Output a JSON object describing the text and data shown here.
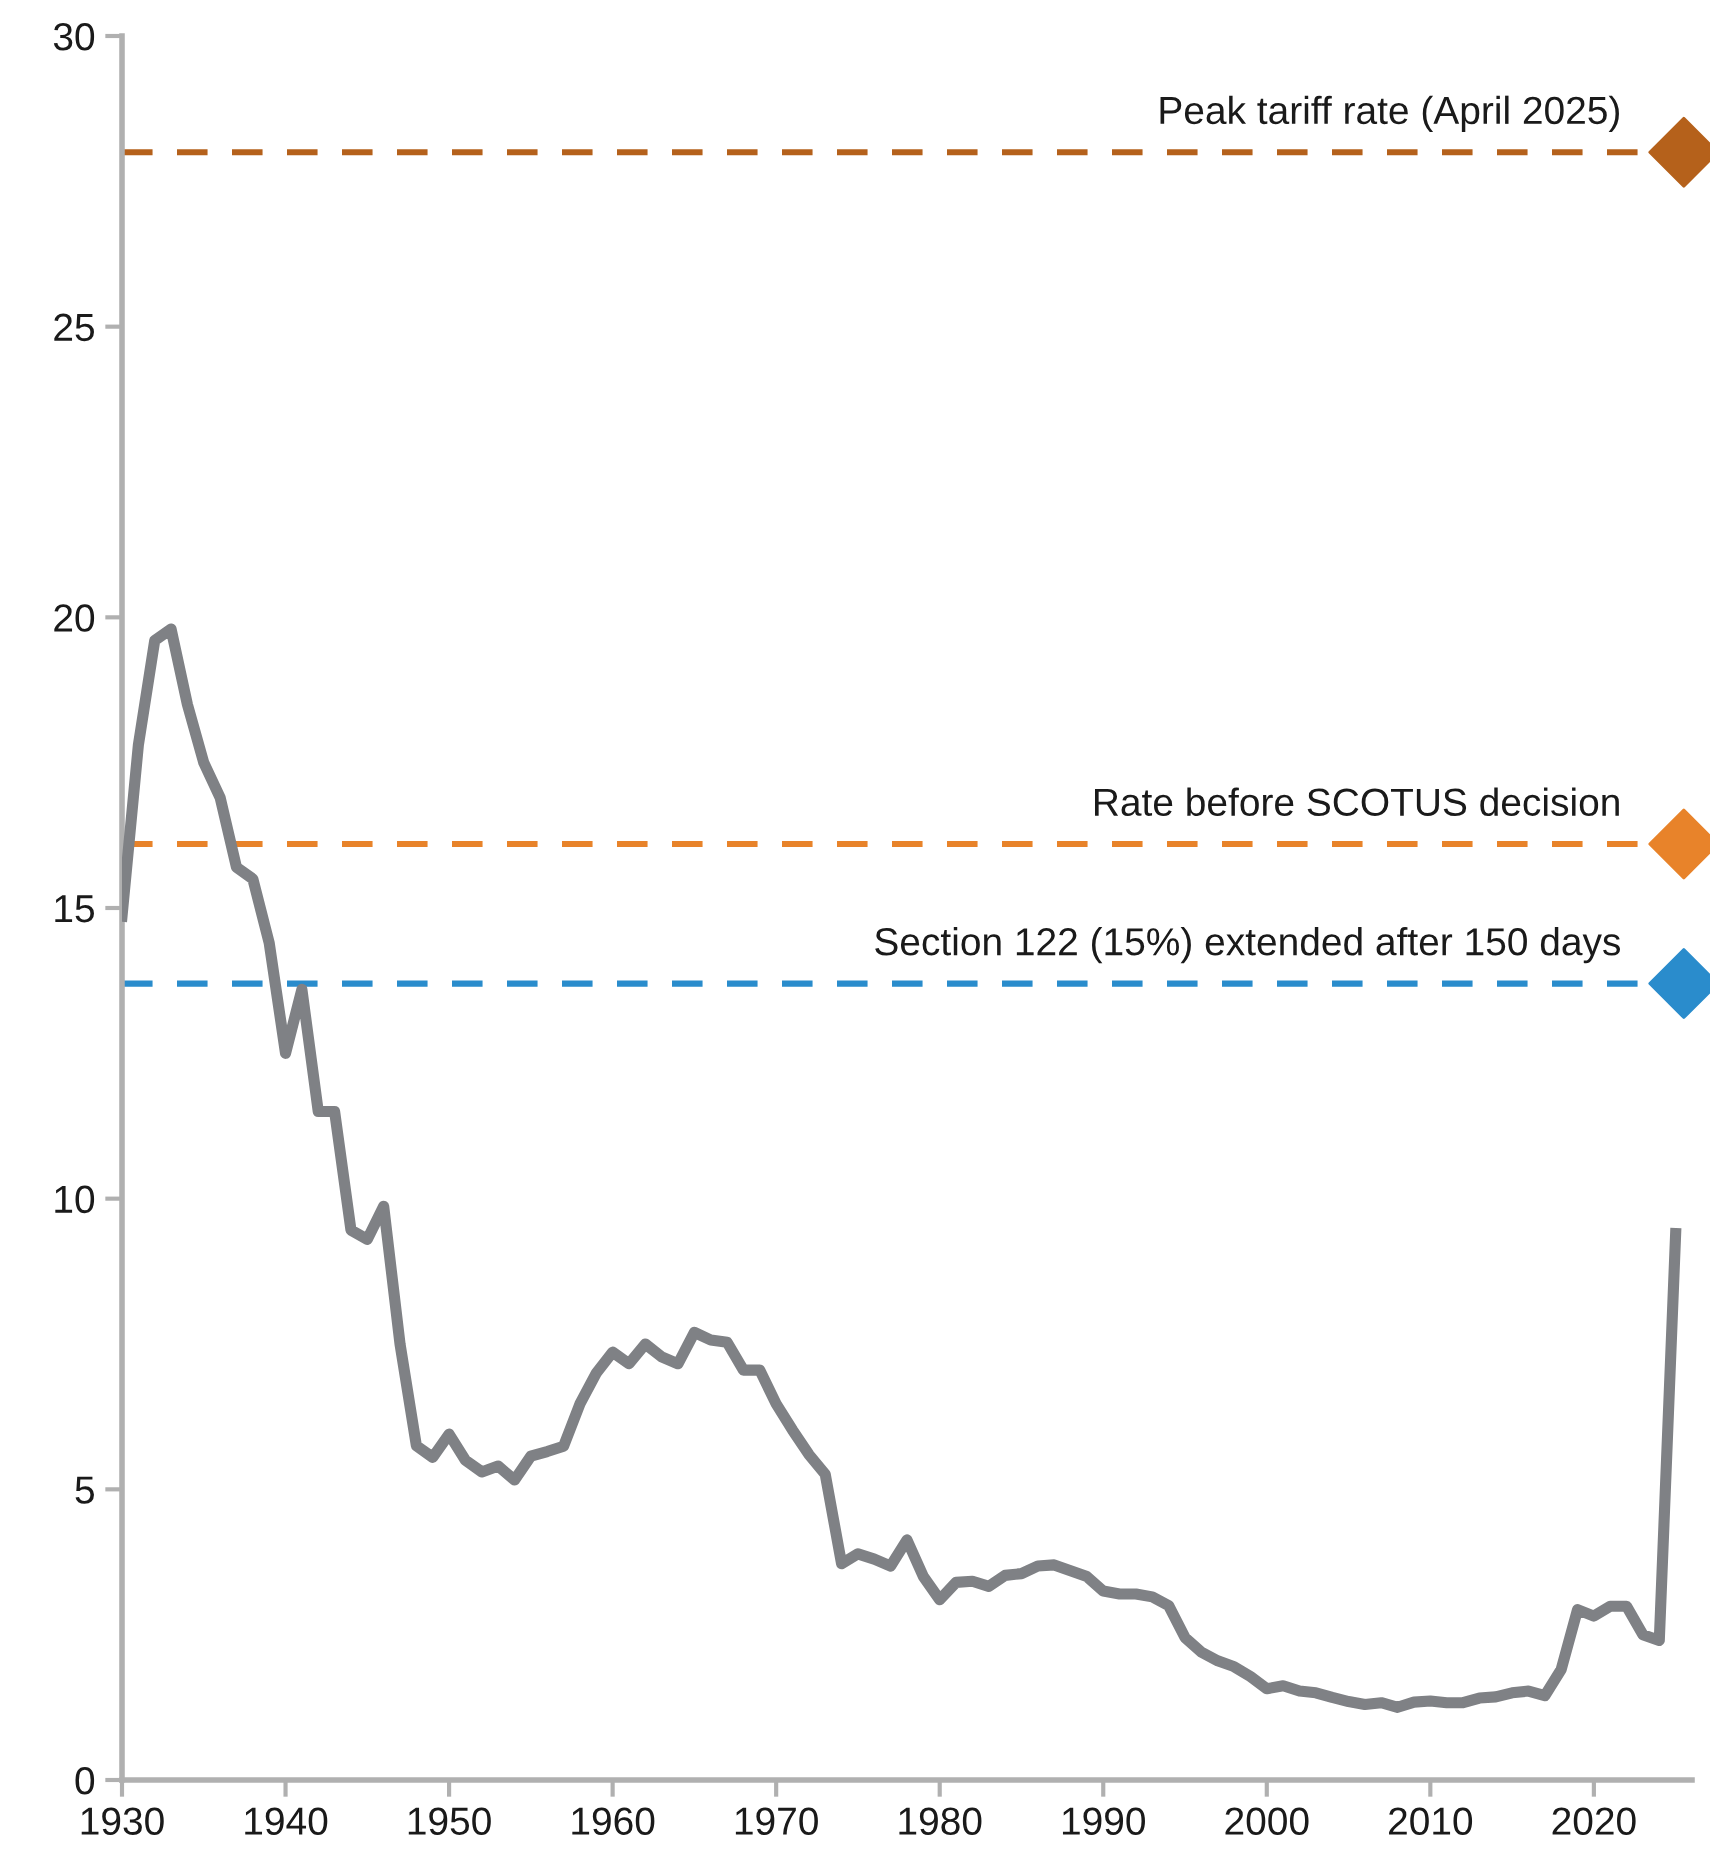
{
  "chart_data": {
    "type": "line",
    "xlim": [
      1930,
      2026
    ],
    "xticks": [
      1930,
      1940,
      1950,
      1960,
      1970,
      1980,
      1990,
      2000,
      2010,
      2020
    ],
    "ylim": [
      0,
      30
    ],
    "yticks": [
      0,
      5,
      10,
      15,
      20,
      25,
      30
    ],
    "series": [
      {
        "color": "#7f8185",
        "marker": "none",
        "line_style": "solid",
        "x": [
          1930,
          1931,
          1932,
          1933,
          1934,
          1935,
          1936,
          1937,
          1938,
          1939,
          1940,
          1941,
          1942,
          1943,
          1944,
          1945,
          1946,
          1947,
          1948,
          1949,
          1950,
          1951,
          1952,
          1953,
          1954,
          1955,
          1956,
          1957,
          1958,
          1959,
          1960,
          1961,
          1962,
          1963,
          1964,
          1965,
          1966,
          1967,
          1968,
          1969,
          1970,
          1971,
          1972,
          1973,
          1974,
          1975,
          1976,
          1977,
          1978,
          1979,
          1980,
          1981,
          1982,
          1983,
          1984,
          1985,
          1986,
          1987,
          1988,
          1989,
          1990,
          1991,
          1992,
          1993,
          1994,
          1995,
          1996,
          1997,
          1998,
          1999,
          2000,
          2001,
          2002,
          2003,
          2004,
          2005,
          2006,
          2007,
          2008,
          2009,
          2010,
          2011,
          2012,
          2013,
          2014,
          2015,
          2016,
          2017,
          2018,
          2019,
          2020,
          2021,
          2022,
          2023,
          2024,
          2025
        ],
        "values": [
          14.86,
          17.8,
          19.6,
          19.8,
          18.5,
          17.5,
          16.9,
          15.7,
          15.5,
          14.4,
          12.5,
          13.6,
          11.5,
          11.5,
          9.46,
          9.3,
          9.87,
          7.5,
          5.75,
          5.55,
          5.95,
          5.5,
          5.3,
          5.4,
          5.16,
          5.57,
          5.65,
          5.74,
          6.47,
          7.0,
          7.36,
          7.16,
          7.5,
          7.28,
          7.16,
          7.7,
          7.57,
          7.53,
          7.05,
          7.05,
          6.47,
          6.02,
          5.6,
          5.26,
          3.72,
          3.89,
          3.8,
          3.68,
          4.13,
          3.5,
          3.1,
          3.4,
          3.42,
          3.33,
          3.52,
          3.55,
          3.68,
          3.7,
          3.6,
          3.5,
          3.25,
          3.2,
          3.2,
          3.15,
          3.0,
          2.45,
          2.2,
          2.05,
          1.95,
          1.78,
          1.57,
          1.62,
          1.53,
          1.5,
          1.42,
          1.35,
          1.3,
          1.33,
          1.25,
          1.34,
          1.36,
          1.33,
          1.33,
          1.41,
          1.43,
          1.5,
          1.53,
          1.45,
          1.9,
          2.93,
          2.82,
          2.99,
          2.99,
          2.5,
          2.4,
          9.4
        ]
      },
      {
        "type": "scatter",
        "color": "#b5611b",
        "marker": "diamond",
        "x": [
          2025.5
        ],
        "values": [
          28
        ]
      },
      {
        "type": "scatter",
        "color": "#e8832a",
        "marker": "diamond",
        "x": [
          2025.5
        ],
        "values": [
          16.1
        ]
      },
      {
        "type": "scatter",
        "color": "#2a8ccc",
        "marker": "diamond",
        "x": [
          2025.5
        ],
        "values": [
          13.7
        ]
      }
    ],
    "ref_lines": [
      {
        "axis": "y",
        "value": 28,
        "label": "Peak tariff rate (April 2025)",
        "color": "#b5611b",
        "line_style": "dashed"
      },
      {
        "axis": "y",
        "value": 16.1,
        "label": "Rate before SCOTUS decision",
        "color": "#e8832a",
        "line_style": "dashed"
      },
      {
        "axis": "y",
        "value": 13.7,
        "label": "Section 122 (15%) extended after 150 days",
        "color": "#2a8ccc",
        "line_style": "dashed"
      }
    ]
  }
}
